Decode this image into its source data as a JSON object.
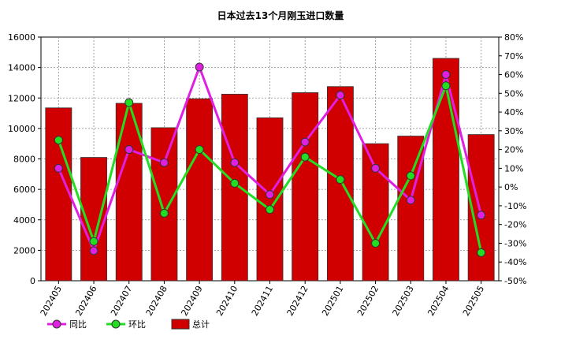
{
  "chart_data": {
    "type": "bar",
    "title": "日本过去13个月刚玉进口数量",
    "categories": [
      "202405",
      "202406",
      "202407",
      "202408",
      "202409",
      "202410",
      "202411",
      "202412",
      "202501",
      "202502",
      "202503",
      "202504",
      "202505"
    ],
    "y_left": {
      "ylim": [
        0,
        16000
      ],
      "ticks": [
        0,
        2000,
        4000,
        6000,
        8000,
        10000,
        12000,
        14000,
        16000
      ]
    },
    "y_right": {
      "ylim": [
        -50,
        80
      ],
      "ticks": [
        "-50%",
        "-40%",
        "-30%",
        "-20%",
        "-10%",
        "0%",
        "10%",
        "20%",
        "30%",
        "40%",
        "50%",
        "60%",
        "70%",
        "80%"
      ]
    },
    "grid": true,
    "legend_position": "bottom-left",
    "series": [
      {
        "name": "总计",
        "type": "bar",
        "axis": "left",
        "color": "#d10000",
        "values": [
          11350,
          8100,
          11650,
          10050,
          11950,
          12250,
          10700,
          12350,
          12750,
          9000,
          9500,
          14600,
          9600
        ]
      },
      {
        "name": "同比",
        "type": "line",
        "axis": "right",
        "color": "#e020e0",
        "values": [
          10,
          -34,
          20,
          13,
          64,
          13,
          -4,
          24,
          49,
          10,
          -7,
          60,
          -15
        ]
      },
      {
        "name": "环比",
        "type": "line",
        "axis": "right",
        "color": "#22dd22",
        "values": [
          25,
          -29,
          45,
          -14,
          20,
          2,
          -12,
          16,
          4,
          -30,
          6,
          54,
          -35
        ]
      }
    ]
  }
}
